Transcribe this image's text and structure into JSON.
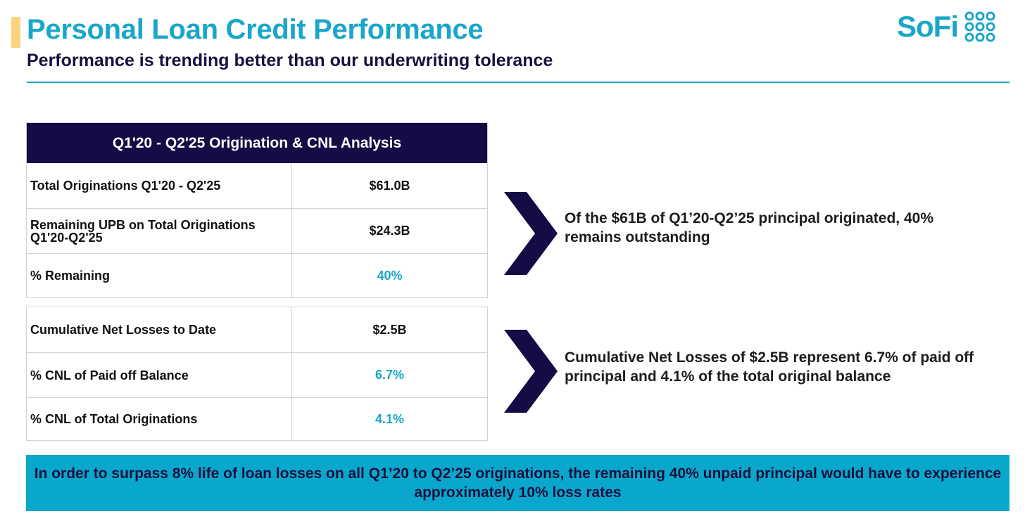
{
  "header": {
    "title": "Personal Loan Credit Performance",
    "subtitle": "Performance is trending better than our underwriting tolerance",
    "logo_text": "SoFi",
    "logo_icon": "sofi-dots-logo-icon"
  },
  "colors": {
    "brand_teal": "#1AA6C8",
    "navy": "#130C45",
    "accent_yellow": "#FBD57E",
    "banner_bg": "#0AA7CC"
  },
  "table1": {
    "header": "Q1'20 - Q2'25 Origination & CNL Analysis",
    "rows": [
      {
        "label": "Total Originations Q1'20 - Q2'25",
        "value": "$61.0B"
      },
      {
        "label": "Remaining UPB on Total Originations Q1'20-Q2'25",
        "value": "$24.3B"
      },
      {
        "label": "% Remaining",
        "value": "40%"
      }
    ]
  },
  "table2": {
    "rows": [
      {
        "label": "Cumulative Net Losses to Date",
        "value": "$2.5B"
      },
      {
        "label": "% CNL of Paid off Balance",
        "value": "6.7%"
      },
      {
        "label": "% CNL of Total Originations",
        "value": "4.1%"
      }
    ]
  },
  "callouts": {
    "first": "Of the $61B of Q1’20-Q2’25 principal originated, 40% remains outstanding",
    "second": "Cumulative Net Losses of $2.5B represent 6.7% of paid off principal and 4.1% of the total original balance"
  },
  "banner": {
    "text": "In order to surpass 8% life of loan losses on all Q1’20 to Q2’25 originations, the remaining 40% unpaid principal would have to experience approximately 10% loss rates"
  }
}
